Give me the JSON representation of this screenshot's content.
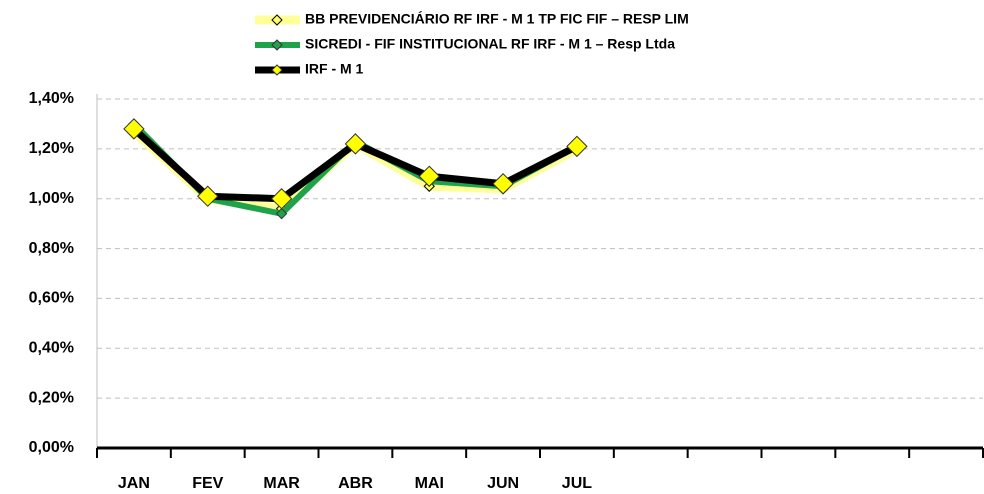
{
  "chart_data": {
    "type": "line",
    "categories": [
      "JAN",
      "FEV",
      "MAR",
      "ABR",
      "MAI",
      "JUN",
      "JUL",
      null,
      null,
      null,
      null,
      null
    ],
    "series": [
      {
        "name": "BB PREVIDENCIÁRIO RF IRF - M 1 TP FIC FIF – RESP LIM",
        "color": "#ffff99",
        "values": [
          1.27,
          1.0,
          0.96,
          1.22,
          1.05,
          1.04,
          1.2,
          null,
          null,
          null,
          null,
          null
        ]
      },
      {
        "name": "SICREDI - FIF INSTITUCIONAL RF IRF - M 1 – Resp Ltda",
        "color": "#1fa34a",
        "values": [
          1.3,
          1.0,
          0.94,
          1.23,
          1.07,
          1.05,
          1.21,
          null,
          null,
          null,
          null,
          null
        ]
      },
      {
        "name": "IRF - M 1",
        "color": "#000000",
        "values": [
          1.28,
          1.01,
          1.0,
          1.22,
          1.09,
          1.06,
          1.21,
          null,
          null,
          null,
          null,
          null
        ]
      }
    ],
    "ylim": [
      0,
      1.4
    ],
    "yticks": [
      {
        "value": 0,
        "label": "0,00%"
      },
      {
        "value": 0.2,
        "label": "0,20%"
      },
      {
        "value": 0.4,
        "label": "0,40%"
      },
      {
        "value": 0.6,
        "label": "0,60%"
      },
      {
        "value": 0.8,
        "label": "0,80%"
      },
      {
        "value": 1.0,
        "label": "1,00%"
      },
      {
        "value": 1.2,
        "label": "1,20%"
      },
      {
        "value": 1.4,
        "label": "1,40%"
      }
    ],
    "grid": true,
    "legend": "top"
  }
}
